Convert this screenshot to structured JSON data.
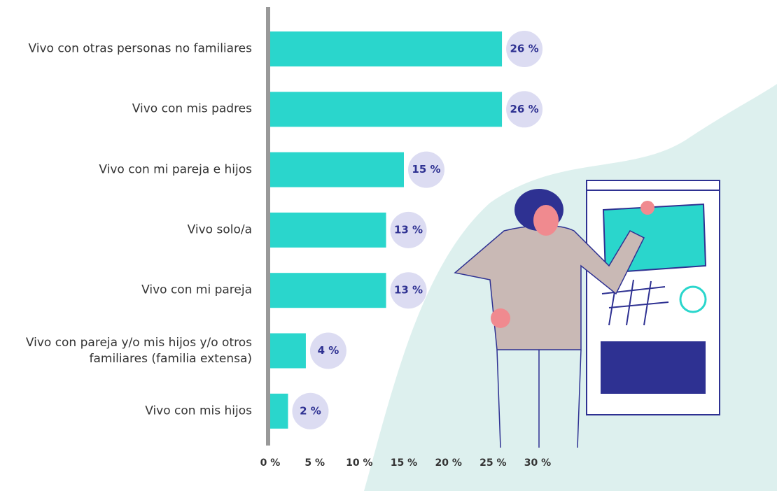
{
  "chart_data": {
    "type": "hbar",
    "categories": [
      "Vivo con otras personas no familiares",
      "Vivo con mis padres",
      "Vivo con mi pareja e hijos",
      "Vivo solo/a",
      "Vivo con mi pareja",
      "Vivo con pareja y/o mis hijos y/o otros familiares (familia extensa)",
      "Vivo con mis hijos"
    ],
    "values": [
      26,
      26,
      15,
      13,
      13,
      4,
      2
    ],
    "value_labels": [
      "26 %",
      "26 %",
      "15 %",
      "13 %",
      "13 %",
      "4 %",
      "2 %"
    ],
    "color": "#2ad6cc",
    "xlim": [
      0,
      30
    ],
    "xticks": [
      {
        "value": 0,
        "label": "0 %"
      },
      {
        "value": 5,
        "label": "5 %"
      },
      {
        "value": 10,
        "label": "10 %"
      },
      {
        "value": 15,
        "label": "15 %"
      },
      {
        "value": 20,
        "label": "20 %"
      },
      {
        "value": 25,
        "label": "25 %"
      },
      {
        "value": 30,
        "label": "30 %"
      }
    ],
    "grid": false
  }
}
